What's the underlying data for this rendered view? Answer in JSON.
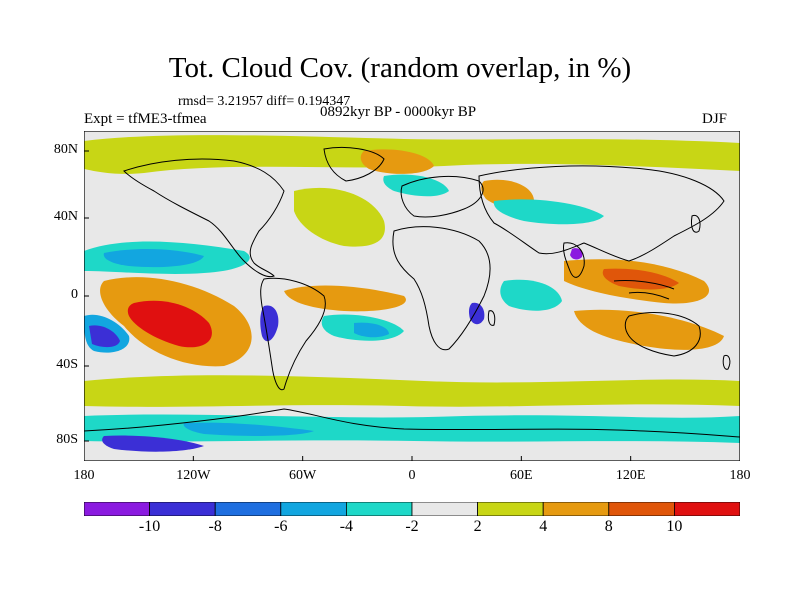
{
  "title": "Tot. Cloud Cov. (random overlap, in %)",
  "stats": "rmsd= 3.21957 diff= 0.194347",
  "experiment": "Expt = tfME3-tfmea",
  "period": "0892kyr BP - 0000kyr BP",
  "season": "DJF",
  "axes": {
    "lat_labels": [
      "80N",
      "40N",
      "0",
      "40S",
      "80S"
    ],
    "lon_labels": [
      "180",
      "120W",
      "60W",
      "0",
      "60E",
      "120E",
      "180"
    ]
  },
  "colorbar": {
    "labels": [
      "-10",
      "-8",
      "-6",
      "-4",
      "-2",
      "2",
      "4",
      "8",
      "10"
    ],
    "colors": [
      "#8b1ae0",
      "#3b2fd6",
      "#1f6fe0",
      "#12a6e0",
      "#1ed8c8",
      "#e8e8e8",
      "#c8d615",
      "#e69a10",
      "#e0560a",
      "#e01010"
    ]
  },
  "palette": {
    "land": "#f0f0f0",
    "coast": "#000000",
    "frame": "#000000"
  }
}
